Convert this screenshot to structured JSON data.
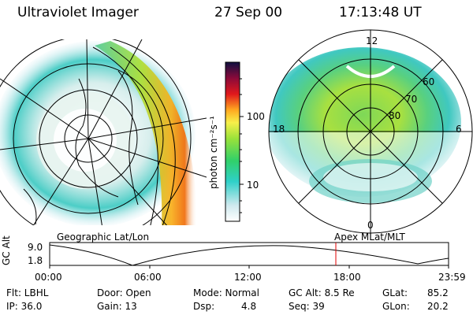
{
  "header": {
    "instrument": "Ultraviolet Imager",
    "date": "27 Sep 00",
    "time": "17:13:48 UT"
  },
  "left_panel": {
    "label": "Geographic Lat/Lon"
  },
  "right_panel": {
    "label": "Apex MLat/MLT",
    "mlt_labels": {
      "top": "12",
      "left": "18",
      "right": "6",
      "bottom": "0"
    },
    "lat_labels": [
      "60",
      "70",
      "80"
    ]
  },
  "colorbar": {
    "unit": "photon cm⁻²s⁻¹",
    "ticks": [
      "100",
      "10"
    ],
    "scale": "log",
    "colors": [
      "#ffffff",
      "#cfe9ee",
      "#2fd0c8",
      "#30d06a",
      "#9ae23a",
      "#f7f04a",
      "#ffa820",
      "#e0181c",
      "#8a0a3a",
      "#101040"
    ]
  },
  "timeline": {
    "ylabel": "GC Alt",
    "yticks": [
      "9.0",
      "1.8"
    ],
    "xticks": [
      "00:00",
      "06:00",
      "12:00",
      "18:00",
      "23:59"
    ],
    "marker_time_hours": 17.23,
    "marker_color": "#e00000"
  },
  "stats": {
    "flt": "Flt: LBHL",
    "ip": "IP: 36.0",
    "door": "Door: Open",
    "gain": "Gain: 13",
    "mode": "Mode: Normal",
    "dsp_label": "Dsp:",
    "dsp_value": "4.8",
    "gcalt": "GC Alt: 8.5 Re",
    "seq": "Seq: 39",
    "glat_label": "GLat:",
    "glat_value": "85.2",
    "glon_label": "GLon:",
    "glon_value": "20.2"
  }
}
